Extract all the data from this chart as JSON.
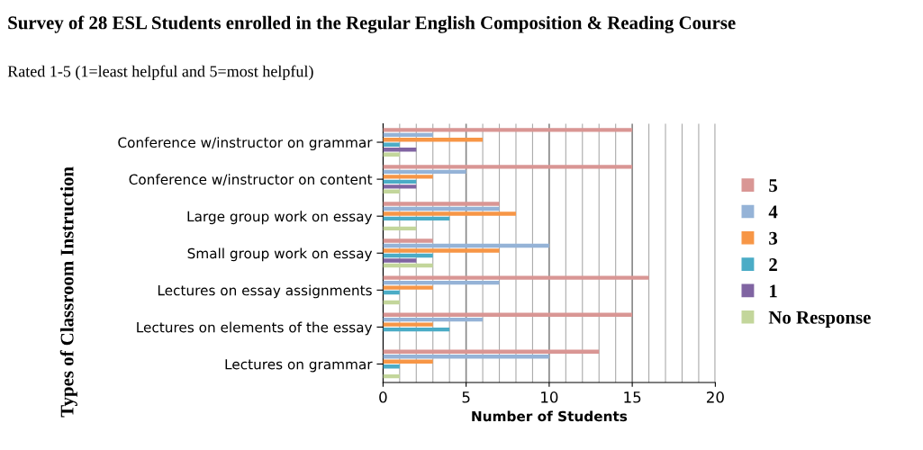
{
  "chart_data": {
    "type": "bar",
    "orientation": "horizontal",
    "title": "Survey of 28 ESL Students enrolled in the Regular English Composition & Reading Course",
    "subtitle": "Rated 1-5 (1=least helpful and 5=most helpful)",
    "xlabel": "Number of Students",
    "ylabel": "Types of Classroom Instruction",
    "categories": [
      "Conference w/instructor on grammar",
      "Conference w/instructor on content",
      "Large group work on essay",
      "Small group work on essay",
      "Lectures on essay assignments",
      "Lectures on elements of the essay",
      "Lectures on grammar"
    ],
    "series": [
      {
        "name": "5",
        "color": "#d99694",
        "values": [
          15,
          15,
          7,
          3,
          16,
          15,
          13
        ]
      },
      {
        "name": "4",
        "color": "#95b3d7",
        "values": [
          3,
          5,
          7,
          10,
          7,
          6,
          10
        ]
      },
      {
        "name": "3",
        "color": "#f79646",
        "values": [
          6,
          3,
          8,
          7,
          3,
          3,
          3
        ]
      },
      {
        "name": "2",
        "color": "#4bacc6",
        "values": [
          1,
          2,
          4,
          3,
          1,
          4,
          1
        ]
      },
      {
        "name": "1",
        "color": "#8064a2",
        "values": [
          2,
          2,
          0,
          2,
          0,
          0,
          0
        ]
      },
      {
        "name": "No Response",
        "color": "#c3d69b",
        "values": [
          1,
          1,
          2,
          3,
          1,
          0,
          1
        ]
      }
    ],
    "xlim": [
      0,
      20
    ],
    "xticks": [
      0,
      5,
      10,
      15,
      20
    ],
    "grid": "x",
    "legend": "right"
  }
}
